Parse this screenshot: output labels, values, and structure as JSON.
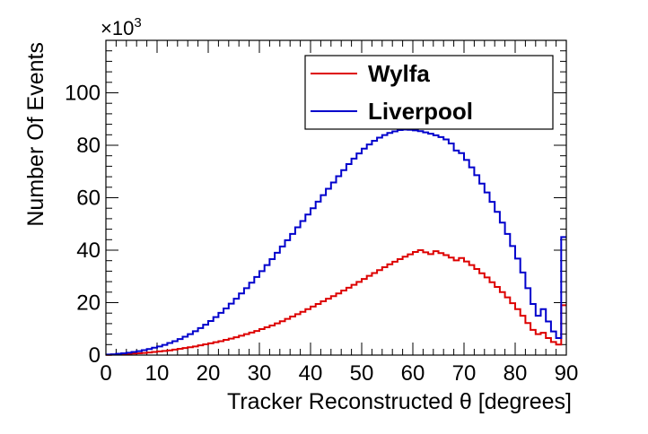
{
  "chart_data": {
    "type": "line",
    "xlabel": "Tracker Reconstructed θ [degrees]",
    "ylabel": "Number Of Events",
    "y_multiplier_label": "×10",
    "y_multiplier_exp": "3",
    "xlim": [
      0,
      90
    ],
    "ylim": [
      0,
      120
    ],
    "x_ticks": [
      0,
      10,
      20,
      30,
      40,
      50,
      60,
      70,
      80,
      90
    ],
    "y_ticks": [
      0,
      20,
      40,
      60,
      80,
      100
    ],
    "legend_position": "top-right",
    "grid": false,
    "bin_width": 1,
    "series": [
      {
        "name": "Wylfa",
        "color": "#dd0000",
        "values": [
          0.1,
          0.2,
          0.3,
          0.4,
          0.5,
          0.6,
          0.7,
          0.8,
          1.0,
          1.2,
          1.4,
          1.6,
          1.8,
          2.1,
          2.4,
          2.7,
          3.0,
          3.3,
          3.7,
          4.1,
          4.5,
          4.9,
          5.3,
          5.8,
          6.3,
          6.8,
          7.4,
          8.0,
          8.6,
          9.2,
          9.9,
          10.6,
          11.3,
          12.1,
          12.9,
          13.8,
          14.7,
          15.6,
          16.5,
          17.5,
          18.5,
          19.5,
          20.5,
          21.5,
          22.5,
          23.5,
          24.6,
          25.7,
          26.8,
          27.9,
          29.0,
          30.2,
          31.3,
          32.4,
          33.5,
          34.6,
          35.6,
          36.6,
          37.5,
          38.4,
          39.3,
          40.0,
          39.2,
          38.5,
          39.6,
          38.9,
          38.1,
          37.2,
          36.1,
          37.0,
          35.7,
          34.3,
          32.8,
          31.2,
          29.6,
          27.8,
          26.0,
          24.0,
          22.0,
          19.8,
          17.5,
          15.0,
          12.2,
          9.6,
          8.0,
          8.5,
          6.5,
          5.0,
          4.0,
          19.0
        ]
      },
      {
        "name": "Liverpool",
        "color": "#0000cc",
        "values": [
          0.2,
          0.3,
          0.5,
          0.7,
          0.9,
          1.2,
          1.5,
          1.9,
          2.3,
          2.8,
          3.3,
          3.9,
          4.6,
          5.3,
          6.1,
          7.0,
          8.0,
          9.1,
          10.3,
          11.6,
          13.0,
          14.5,
          16.1,
          17.8,
          19.6,
          21.5,
          23.5,
          25.5,
          27.6,
          29.8,
          32.0,
          34.3,
          36.6,
          39.0,
          41.4,
          43.8,
          46.2,
          48.7,
          51.1,
          53.6,
          56.0,
          58.5,
          61.0,
          63.4,
          65.8,
          68.2,
          70.5,
          72.8,
          74.9,
          76.9,
          78.7,
          80.3,
          81.7,
          82.9,
          83.9,
          84.7,
          85.3,
          85.8,
          86.0,
          85.9,
          85.7,
          85.4,
          84.9,
          84.4,
          83.8,
          83.1,
          82.2,
          80.7,
          78.0,
          77.0,
          74.4,
          71.6,
          68.6,
          65.4,
          62.0,
          58.4,
          54.6,
          50.5,
          46.2,
          41.6,
          36.8,
          31.5,
          25.5,
          19.5,
          15.0,
          17.5,
          12.8,
          9.0,
          6.5,
          45.0
        ]
      }
    ]
  }
}
